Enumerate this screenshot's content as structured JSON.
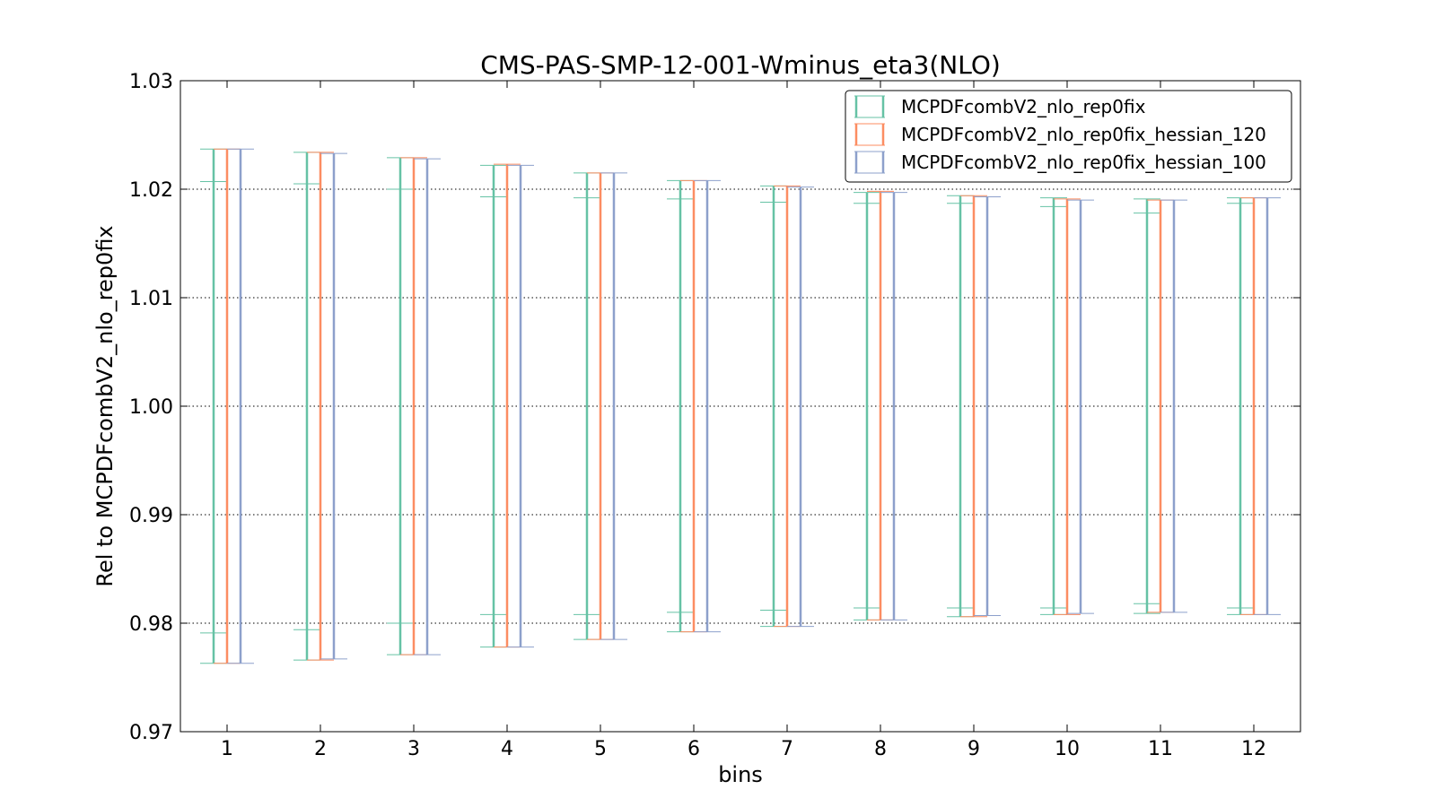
{
  "chart_data": {
    "type": "errorbar",
    "title": "CMS-PAS-SMP-12-001-Wminus_eta3(NLO)",
    "xlabel": "bins",
    "ylabel": "Rel to MCPDFcombV2_nlo_rep0fix",
    "xlim": [
      0.5,
      12.5
    ],
    "ylim": [
      0.97,
      1.03
    ],
    "grid": true,
    "legend_position": "top-right",
    "x": [
      1,
      2,
      3,
      4,
      5,
      6,
      7,
      8,
      9,
      10,
      11,
      12
    ],
    "x_tick_labels": [
      "1",
      "2",
      "3",
      "4",
      "5",
      "6",
      "7",
      "8",
      "9",
      "10",
      "11",
      "12"
    ],
    "y_ticks": [
      0.97,
      0.98,
      0.99,
      1.0,
      1.01,
      1.02,
      1.03
    ],
    "y_tick_labels": [
      "0.97",
      "0.98",
      "0.99",
      "1.00",
      "1.01",
      "1.02",
      "1.03"
    ],
    "series": [
      {
        "name": "MCPDFcombV2_nlo_rep0fix",
        "color": "#66c2a5",
        "low": [
          0.9763,
          0.9766,
          0.9771,
          0.9778,
          0.9785,
          0.9792,
          0.9797,
          0.9803,
          0.9806,
          0.9808,
          0.9809,
          0.9808
        ],
        "high": [
          1.0237,
          1.0234,
          1.0229,
          1.0222,
          1.0215,
          1.0208,
          1.0203,
          1.0197,
          1.0194,
          1.0192,
          1.0191,
          1.0192
        ],
        "inner_low": [
          0.9791,
          0.9794,
          0.98,
          0.9808,
          0.9808,
          0.981,
          0.9812,
          0.9814,
          0.9814,
          0.9814,
          0.9818,
          0.9814
        ],
        "inner_high": [
          1.0207,
          1.0205,
          1.02,
          1.0193,
          1.0192,
          1.0191,
          1.0188,
          1.0187,
          1.0187,
          1.0184,
          1.0178,
          1.0187
        ]
      },
      {
        "name": "MCPDFcombV2_nlo_rep0fix_hessian_120",
        "color": "#fc8d62",
        "low": [
          0.9763,
          0.9766,
          0.9771,
          0.9778,
          0.9785,
          0.9792,
          0.9797,
          0.9803,
          0.9806,
          0.9808,
          0.981,
          0.9808
        ],
        "high": [
          1.0237,
          1.0234,
          1.0229,
          1.0223,
          1.0215,
          1.0208,
          1.0203,
          1.0198,
          1.0194,
          1.0191,
          1.019,
          1.0192
        ]
      },
      {
        "name": "MCPDFcombV2_nlo_rep0fix_hessian_100",
        "color": "#8da0cb",
        "low": [
          0.9763,
          0.9767,
          0.9771,
          0.9778,
          0.9785,
          0.9792,
          0.9797,
          0.9803,
          0.9807,
          0.9809,
          0.981,
          0.9808
        ],
        "high": [
          1.0237,
          1.0233,
          1.0228,
          1.0222,
          1.0215,
          1.0208,
          1.0202,
          1.0197,
          1.0193,
          1.019,
          1.019,
          1.0192
        ]
      }
    ]
  }
}
